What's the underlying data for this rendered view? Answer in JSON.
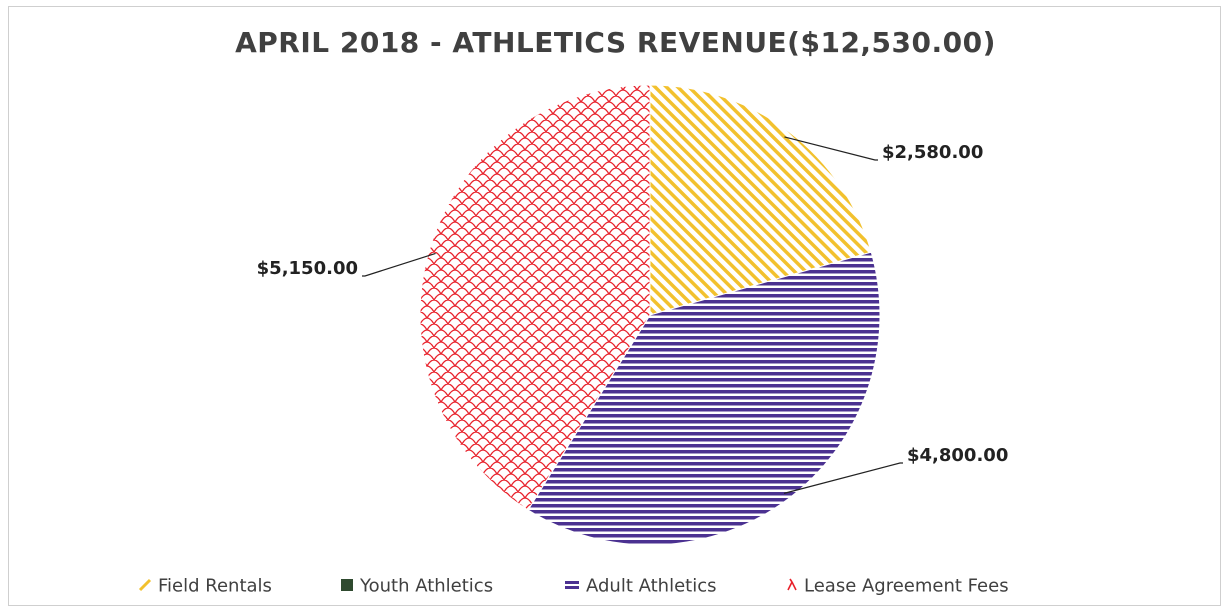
{
  "chart_data": {
    "type": "pie",
    "title": "APRIL 2018 - ATHLETICS REVENUE($12,530.00)",
    "slices": [
      {
        "name": "Field Rentals",
        "value": 2580,
        "label": "$2,580.00",
        "color": "#f2c12e",
        "pattern": "diagonal-stripes"
      },
      {
        "name": "Youth Athletics",
        "value": 0,
        "label": "",
        "color": "#2f4a2f",
        "pattern": "solid"
      },
      {
        "name": "Adult Athletics",
        "value": 4800,
        "label": "$4,800.00",
        "color": "#4b3191",
        "pattern": "horizontal-stripes"
      },
      {
        "name": "Lease Agreement Fees",
        "value": 5150,
        "label": "$5,150.00",
        "color": "#e8212b",
        "pattern": "scale-lattice"
      }
    ],
    "legend_position": "bottom"
  }
}
